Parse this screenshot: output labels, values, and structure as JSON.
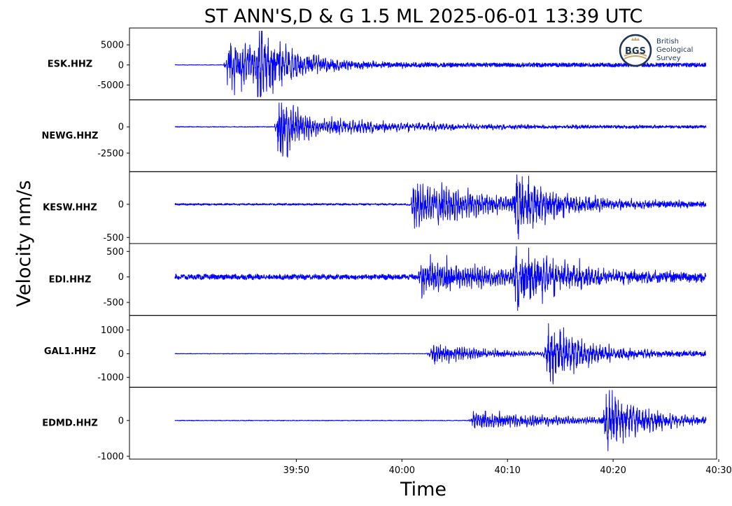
{
  "chart_data": {
    "type": "line",
    "title": "ST ANN'S,D & G 1.5 ML   2025-06-01 13:39 UTC",
    "xlabel": "Time",
    "ylabel": "Velocity nm/s",
    "x_ticks": [
      "39:50",
      "40:00",
      "40:10",
      "40:20",
      "40:30"
    ],
    "x_tick_seconds": [
      50,
      60,
      70,
      80,
      90
    ],
    "xlim_seconds": [
      34.2,
      89.8
    ],
    "trace_span_seconds": [
      38.5,
      88.8
    ],
    "logo": {
      "lines": [
        "British",
        "Geological",
        "Survey"
      ],
      "mark": "BGS"
    },
    "panels": [
      {
        "station": "ESK.HHZ",
        "ylim": [
          -8000,
          8500
        ],
        "ticks": [
          5000,
          0,
          -5000
        ],
        "tick_labels": [
          "5000",
          "0",
          "-5000"
        ],
        "events": [
          {
            "t": 43.3,
            "amp": 6000,
            "decay": 5.5,
            "noise": 0.07
          },
          {
            "t": 46.1,
            "amp": 8500,
            "decay": 3.0,
            "noise": 0.09
          }
        ],
        "pre_noise": 60,
        "tail": 500
      },
      {
        "station": "NEWG.HHZ",
        "ylim": [
          -4000,
          2300
        ],
        "ticks": [
          0,
          -2500
        ],
        "tick_labels": [
          "0",
          "-2500"
        ],
        "events": [
          {
            "t": 48.1,
            "amp": 3700,
            "decay": 2.2,
            "noise": 0.08
          },
          {
            "t": 53.0,
            "amp": 600,
            "decay": 12.0,
            "noise": 0.3
          }
        ],
        "pre_noise": 30,
        "tail": 120
      },
      {
        "station": "KESW.HHZ",
        "ylim": [
          -550,
          450
        ],
        "ticks": [
          0,
          -500
        ],
        "tick_labels": [
          "0",
          "-500"
        ],
        "events": [
          {
            "t": 60.8,
            "amp": 320,
            "decay": 8.5,
            "noise": 0.3
          },
          {
            "t": 70.5,
            "amp": 420,
            "decay": 4.5,
            "noise": 0.3
          }
        ],
        "pre_noise": 12,
        "tail": 35
      },
      {
        "station": "EDI.HHZ",
        "ylim": [
          -700,
          600
        ],
        "ticks": [
          500,
          0,
          -500
        ],
        "tick_labels": [
          "500",
          "0",
          "-500"
        ],
        "events": [
          {
            "t": 61.5,
            "amp": 330,
            "decay": 9.0,
            "noise": 0.3
          },
          {
            "t": 70.5,
            "amp": 580,
            "decay": 5.0,
            "noise": 0.3
          }
        ],
        "pre_noise": 45,
        "tail": 60
      },
      {
        "station": "GAL1.HHZ",
        "ylim": [
          -1300,
          1500
        ],
        "ticks": [
          1000,
          0,
          -1000
        ],
        "tick_labels": [
          "1000",
          "0",
          "-1000"
        ],
        "events": [
          {
            "t": 62.5,
            "amp": 380,
            "decay": 6.5,
            "noise": 0.35
          },
          {
            "t": 73.5,
            "amp": 1250,
            "decay": 4.0,
            "noise": 0.3
          }
        ],
        "pre_noise": 10,
        "tail": 90
      },
      {
        "station": "EDMD.HHZ",
        "ylim": [
          -1000,
          850
        ],
        "ticks": [
          0,
          -1000
        ],
        "tick_labels": [
          "0",
          "-1000"
        ],
        "events": [
          {
            "t": 66.5,
            "amp": 250,
            "decay": 10.0,
            "noise": 0.35
          },
          {
            "t": 79.0,
            "amp": 800,
            "decay": 3.8,
            "noise": 0.3
          }
        ],
        "pre_noise": 8,
        "tail": 55
      }
    ]
  }
}
